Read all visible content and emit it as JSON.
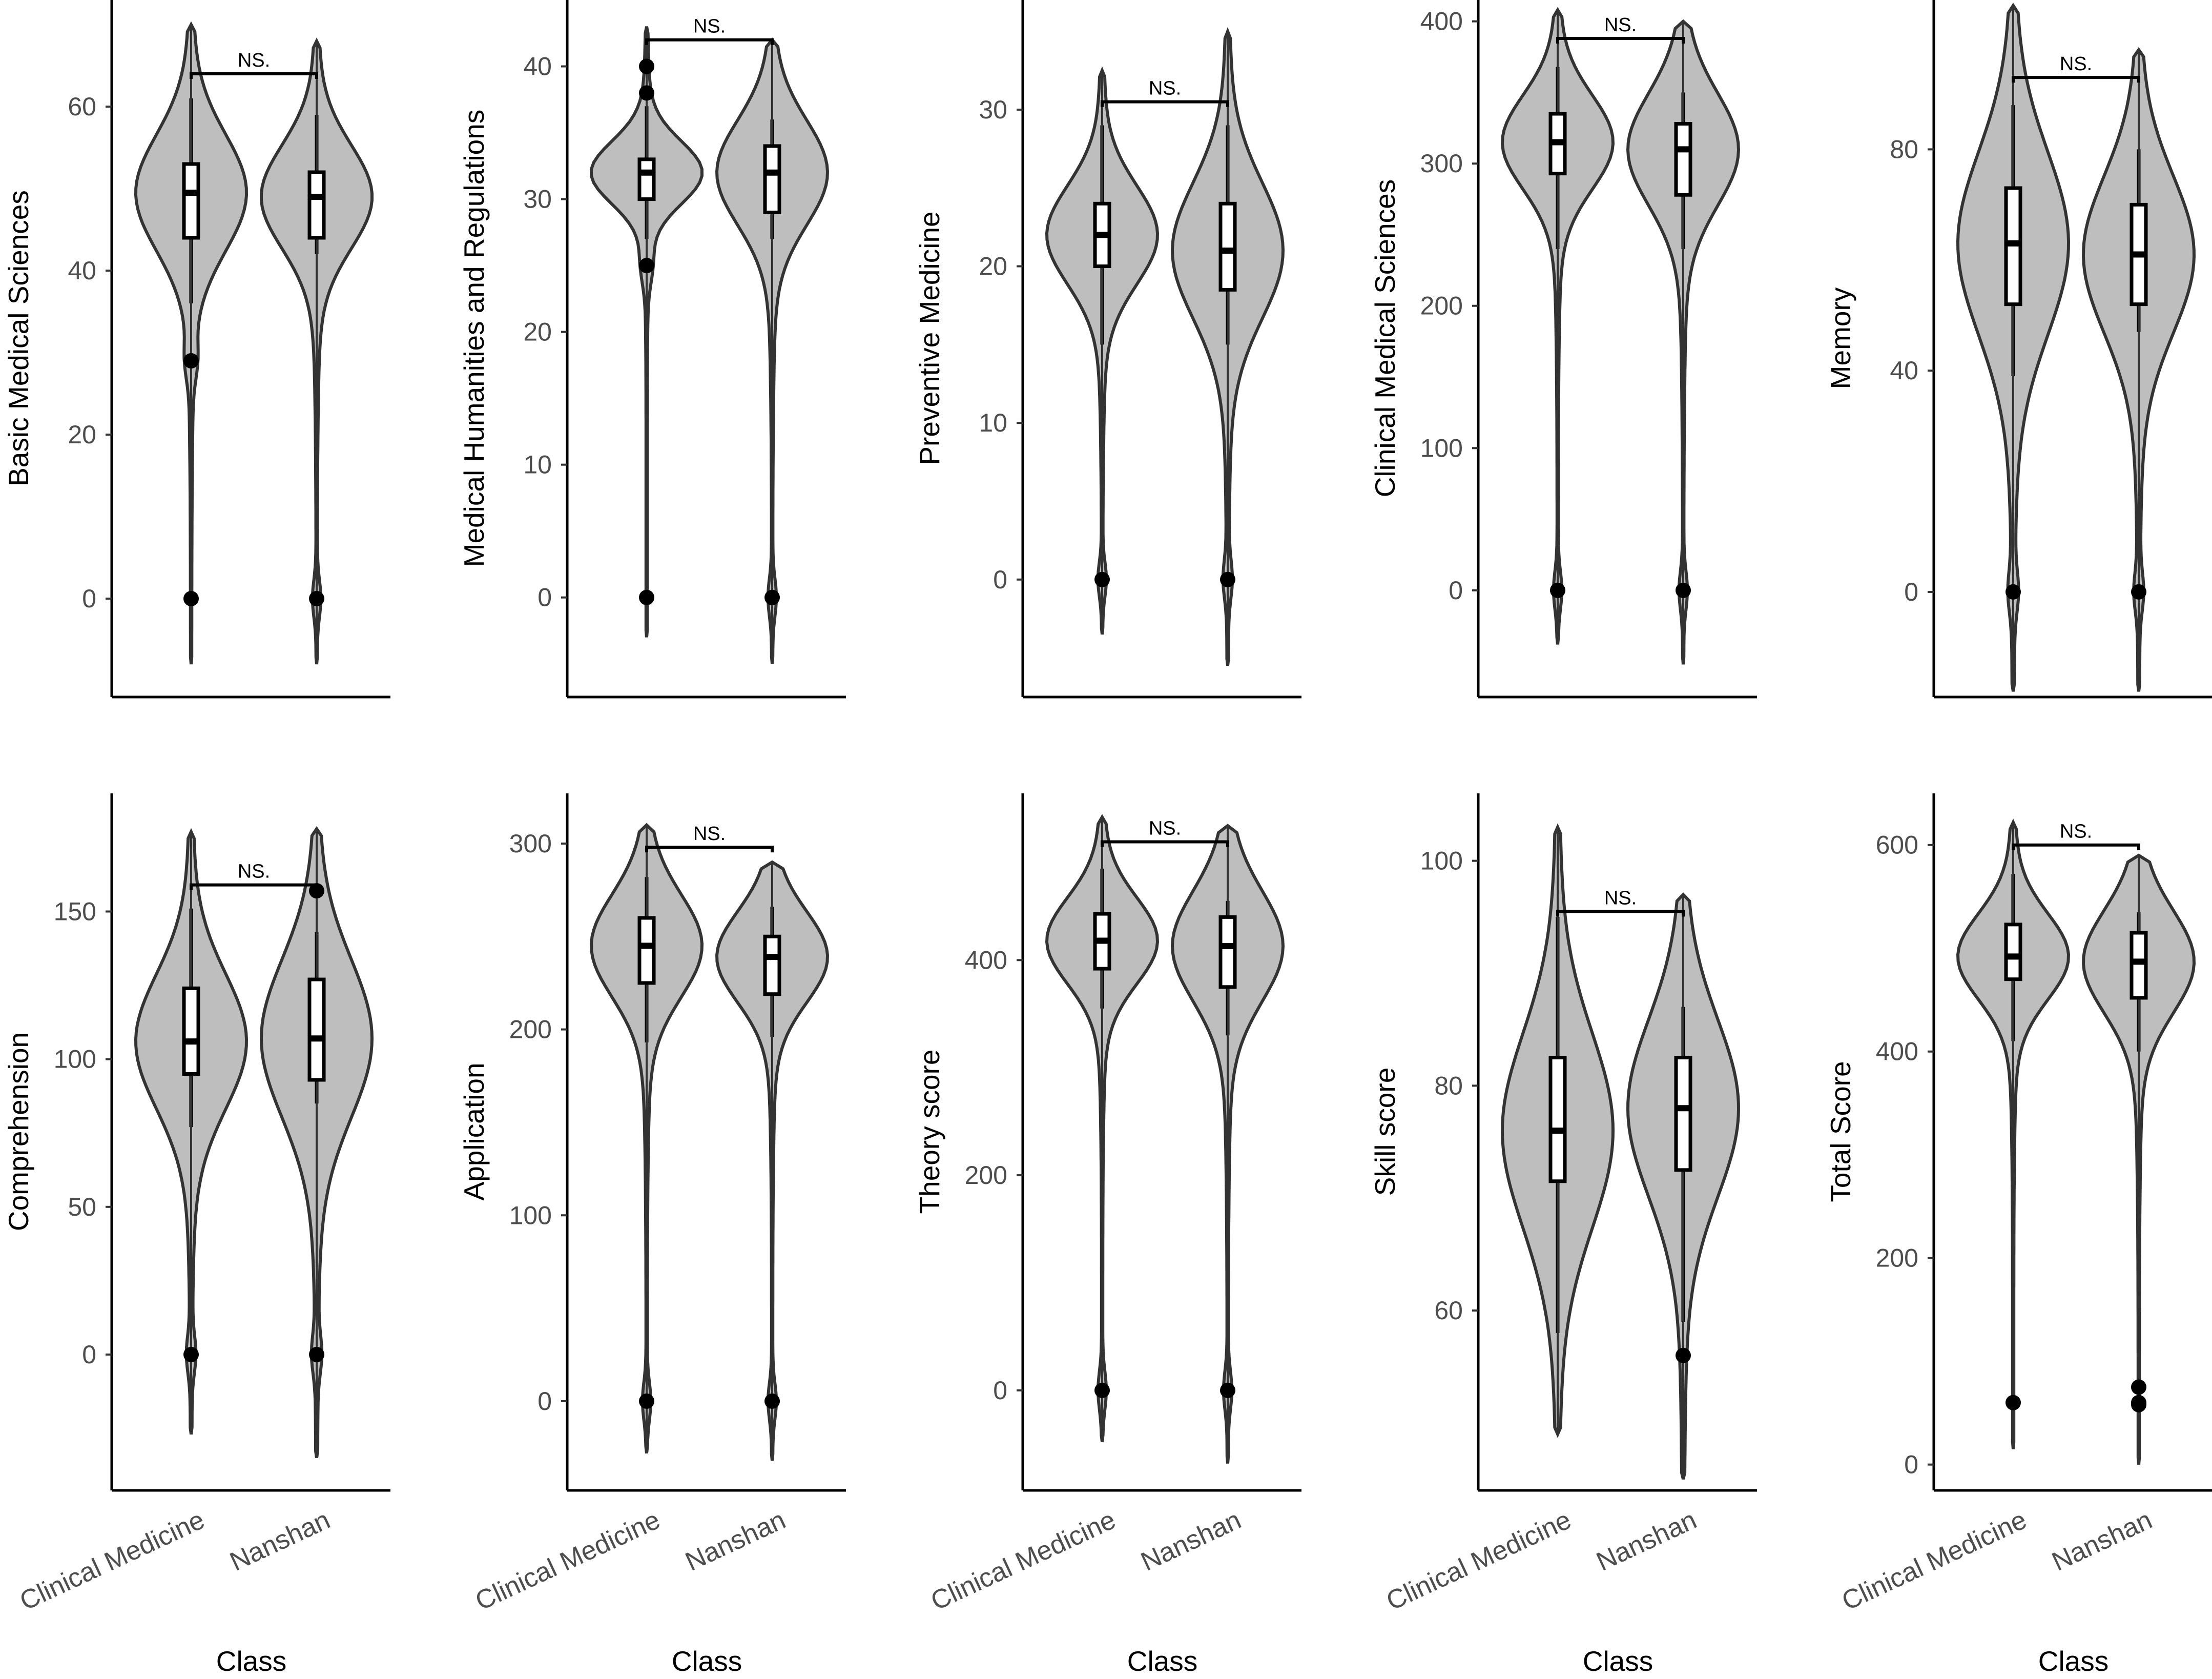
{
  "colors": {
    "violin_fill": "#bebebe",
    "violin_stroke": "#333333",
    "box_fill": "#ffffff",
    "point": "#000000"
  },
  "chart_data": [
    {
      "type": "violin",
      "ylabel": "Basic Medical Sciences",
      "xlabel": "Class",
      "categories": [
        "Clinical Medicine",
        "Nanshan"
      ],
      "ylim": [
        -12,
        73
      ],
      "yticks": [
        0,
        20,
        40,
        60
      ],
      "annotation": "NS.",
      "bracket_y": 64,
      "groups": [
        {
          "median": 49.5,
          "q1": 44,
          "q3": 53,
          "whisker_low": 36,
          "whisker_high": 61,
          "min": -8,
          "max": 70,
          "outliers": [
            29,
            0
          ]
        },
        {
          "median": 49,
          "q1": 44,
          "q3": 52,
          "whisker_low": 42,
          "whisker_high": 59,
          "min": -8,
          "max": 68,
          "outliers": [
            0
          ]
        }
      ]
    },
    {
      "type": "violin",
      "ylabel": "Medical Humanities and Regulations",
      "xlabel": "Class",
      "categories": [
        "Clinical Medicine",
        "Nanshan"
      ],
      "ylim": [
        -7.5,
        45
      ],
      "yticks": [
        0,
        10,
        20,
        30,
        40
      ],
      "annotation": "NS.",
      "bracket_y": 42,
      "groups": [
        {
          "median": 32,
          "q1": 30,
          "q3": 33,
          "whisker_low": 27,
          "whisker_high": 37,
          "min": -3,
          "max": 43,
          "outliers": [
            40,
            38,
            25,
            0
          ]
        },
        {
          "median": 32,
          "q1": 29,
          "q3": 34,
          "whisker_low": 27,
          "whisker_high": 36,
          "min": -5,
          "max": 42,
          "outliers": [
            0
          ]
        }
      ]
    },
    {
      "type": "violin",
      "ylabel": "Preventive Medicine",
      "xlabel": "Class",
      "categories": [
        "Clinical Medicine",
        "Nanshan"
      ],
      "ylim": [
        -7.5,
        37
      ],
      "yticks": [
        0,
        10,
        20,
        30
      ],
      "annotation": "NS.",
      "bracket_y": 30.5,
      "groups": [
        {
          "median": 22,
          "q1": 20,
          "q3": 24,
          "whisker_low": 15,
          "whisker_high": 29,
          "min": -3.5,
          "max": 32.5,
          "outliers": [
            0
          ]
        },
        {
          "median": 21,
          "q1": 18.5,
          "q3": 24,
          "whisker_low": 15,
          "whisker_high": 29,
          "min": -5.5,
          "max": 35,
          "outliers": [
            0
          ]
        }
      ]
    },
    {
      "type": "violin",
      "ylabel": "Clinical Medical Sciences",
      "xlabel": "Class",
      "categories": [
        "Clinical Medicine",
        "Nanshan"
      ],
      "ylim": [
        -75,
        415
      ],
      "yticks": [
        0,
        100,
        200,
        300,
        400
      ],
      "annotation": "NS.",
      "bracket_y": 388,
      "groups": [
        {
          "median": 315,
          "q1": 293,
          "q3": 335,
          "whisker_low": 240,
          "whisker_high": 368,
          "min": -38,
          "max": 408,
          "outliers": [
            0
          ]
        },
        {
          "median": 310,
          "q1": 278,
          "q3": 328,
          "whisker_low": 240,
          "whisker_high": 350,
          "min": -52,
          "max": 400,
          "outliers": [
            0
          ]
        }
      ]
    },
    {
      "type": "violin",
      "ylabel": "Memory",
      "xlabel": "Class",
      "categories": [
        "Clinical Medicine",
        "Nanshan"
      ],
      "ylim": [
        -19,
        107
      ],
      "yticks": [
        0,
        40,
        80
      ],
      "annotation": "NS.",
      "bracket_y": 93,
      "groups": [
        {
          "median": 63,
          "q1": 52,
          "q3": 73,
          "whisker_low": 39,
          "whisker_high": 88,
          "min": -18,
          "max": 106,
          "outliers": [
            0
          ]
        },
        {
          "median": 61,
          "q1": 52,
          "q3": 70,
          "whisker_low": 47,
          "whisker_high": 80,
          "min": -18,
          "max": 98,
          "outliers": [
            0
          ]
        }
      ]
    },
    {
      "type": "violin",
      "ylabel": "Comprehension",
      "xlabel": "Class",
      "categories": [
        "Clinical Medicine",
        "Nanshan"
      ],
      "ylim": [
        -46,
        190
      ],
      "yticks": [
        0,
        50,
        100,
        150
      ],
      "annotation": "NS.",
      "bracket_y": 159,
      "groups": [
        {
          "median": 106,
          "q1": 95,
          "q3": 124,
          "whisker_low": 77,
          "whisker_high": 151,
          "min": -27,
          "max": 177,
          "outliers": [
            0
          ]
        },
        {
          "median": 107,
          "q1": 93,
          "q3": 127,
          "whisker_low": 85,
          "whisker_high": 143,
          "min": -35,
          "max": 178,
          "outliers": [
            0,
            157
          ]
        }
      ]
    },
    {
      "type": "violin",
      "ylabel": "Application",
      "xlabel": "Class",
      "categories": [
        "Clinical Medicine",
        "Nanshan"
      ],
      "ylim": [
        -48,
        327
      ],
      "yticks": [
        0,
        100,
        200,
        300
      ],
      "annotation": "NS.",
      "bracket_y": 298,
      "groups": [
        {
          "median": 245,
          "q1": 225,
          "q3": 260,
          "whisker_low": 193,
          "whisker_high": 282,
          "min": -28,
          "max": 310,
          "outliers": [
            0
          ]
        },
        {
          "median": 239,
          "q1": 219,
          "q3": 250,
          "whisker_low": 196,
          "whisker_high": 266,
          "min": -32,
          "max": 290,
          "outliers": [
            0
          ]
        }
      ]
    },
    {
      "type": "violin",
      "ylabel": "Theory score",
      "xlabel": "Class",
      "categories": [
        "Clinical Medicine",
        "Nanshan"
      ],
      "ylim": [
        -93,
        555
      ],
      "yticks": [
        0,
        200,
        400
      ],
      "annotation": "NS.",
      "bracket_y": 510,
      "groups": [
        {
          "median": 418,
          "q1": 392,
          "q3": 443,
          "whisker_low": 355,
          "whisker_high": 485,
          "min": -48,
          "max": 533,
          "outliers": [
            0
          ]
        },
        {
          "median": 413,
          "q1": 375,
          "q3": 440,
          "whisker_low": 330,
          "whisker_high": 455,
          "min": -68,
          "max": 525,
          "outliers": [
            0
          ]
        }
      ]
    },
    {
      "type": "violin",
      "ylabel": "Skill score",
      "xlabel": "Class",
      "categories": [
        "Clinical Medicine",
        "Nanshan"
      ],
      "ylim": [
        44,
        106
      ],
      "yticks": [
        60,
        80,
        100
      ],
      "annotation": "NS.",
      "bracket_y": 95.5,
      "groups": [
        {
          "median": 76,
          "q1": 71.5,
          "q3": 82.5,
          "whisker_low": 58,
          "whisker_high": 95,
          "min": 49,
          "max": 103,
          "outliers": []
        },
        {
          "median": 78,
          "q1": 72.5,
          "q3": 82.5,
          "whisker_low": 59,
          "whisker_high": 87,
          "min": 45,
          "max": 97,
          "outliers": [
            56
          ]
        }
      ]
    },
    {
      "type": "violin",
      "ylabel": "Total Score",
      "xlabel": "Class",
      "categories": [
        "Clinical Medicine",
        "Nanshan"
      ],
      "ylim": [
        -25,
        650
      ],
      "yticks": [
        0,
        200,
        400,
        600
      ],
      "annotation": "NS.",
      "bracket_y": 600,
      "groups": [
        {
          "median": 492,
          "q1": 470,
          "q3": 523,
          "whisker_low": 410,
          "whisker_high": 572,
          "min": 15,
          "max": 622,
          "outliers": [
            60
          ]
        },
        {
          "median": 487,
          "q1": 452,
          "q3": 515,
          "whisker_low": 400,
          "whisker_high": 535,
          "min": 0,
          "max": 590,
          "outliers": [
            75,
            60,
            58
          ]
        }
      ]
    }
  ]
}
